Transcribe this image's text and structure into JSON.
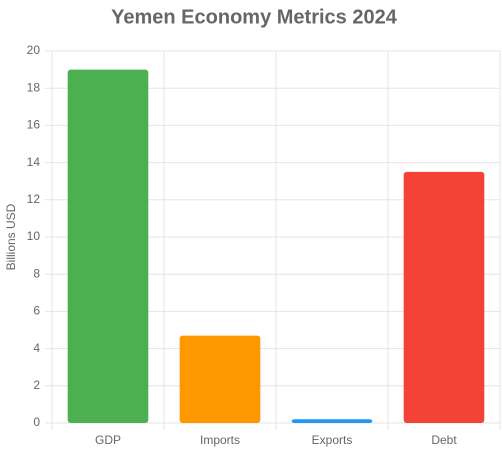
{
  "chart_data": {
    "type": "bar",
    "title": "Yemen Economy Metrics 2024",
    "y_label": "Billions USD",
    "categories": [
      "GDP",
      "Imports",
      "Exports",
      "Debt"
    ],
    "values": [
      19.0,
      4.7,
      0.2,
      13.5
    ],
    "colors": [
      "#4caf50",
      "#ff9800",
      "#2196f3",
      "#f44336"
    ],
    "ylim": [
      0,
      20
    ],
    "yticks": [
      0,
      2,
      4,
      6,
      8,
      10,
      12,
      14,
      16,
      18,
      20
    ],
    "grid": true
  }
}
